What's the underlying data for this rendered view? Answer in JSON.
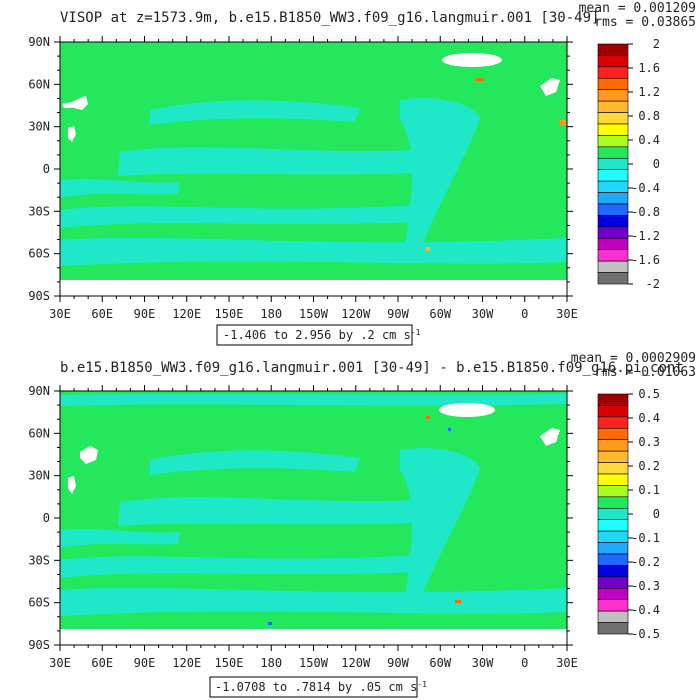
{
  "colors": {
    "ocean_base": "#24e85c",
    "ocean_neg": "#1fe8c8",
    "land": "#ffffff",
    "frame": "#000000"
  },
  "panels": [
    {
      "title": "VISOP at z=1573.9m, b.e15.B1850_WW3.f09_g16.langmuir.001 [30-49]",
      "mean_text": "mean = 0.001209",
      "rms_text": "rms = 0.03865",
      "range_text": "-1.406 to 2.956 by .2 cm s",
      "range_sup": "-1",
      "colorbar": {
        "labels": [
          "2",
          "1.6",
          "1.2",
          "0.8",
          "0.4",
          "0",
          "-0.4",
          "-0.8",
          "-1.2",
          "-1.6",
          "-2"
        ],
        "colors": [
          "#a00000",
          "#d80000",
          "#ff2020",
          "#ff6a00",
          "#ff9a20",
          "#ffb830",
          "#ffd840",
          "#ffff00",
          "#aaff20",
          "#24e85c",
          "#1fe8c8",
          "#20ffff",
          "#20d8ff",
          "#20a8ff",
          "#2068ff",
          "#0000e0",
          "#7000c8",
          "#c000c0",
          "#ff30d0",
          "#c0c0c0",
          "#707070"
        ]
      }
    },
    {
      "title": "b.e15.B1850_WW3.f09_g16.langmuir.001 [30-49] - b.e15.B1850.f09_g16.pi_cont",
      "mean_text": "mean = 0.0002909",
      "rms_text": "rms = 0.01063",
      "range_text": "-1.0708 to .7814 by .05 cm s",
      "range_sup": "-1",
      "colorbar": {
        "labels": [
          "0.5",
          "0.4",
          "0.3",
          "0.2",
          "0.1",
          "0",
          "-0.1",
          "-0.2",
          "-0.3",
          "-0.4",
          "-0.5"
        ],
        "colors": [
          "#a00000",
          "#d80000",
          "#ff2020",
          "#ff6a00",
          "#ff9a20",
          "#ffb830",
          "#ffd840",
          "#ffff00",
          "#aaff20",
          "#24e85c",
          "#1fe8c8",
          "#20ffff",
          "#20d8ff",
          "#20a8ff",
          "#2068ff",
          "#0000e0",
          "#7000c8",
          "#c000c0",
          "#ff30d0",
          "#c0c0c0",
          "#707070"
        ]
      }
    }
  ],
  "lat_labels": [
    "90N",
    "60N",
    "30N",
    "0",
    "30S",
    "60S",
    "90S"
  ],
  "lon_labels": [
    "30E",
    "60E",
    "90E",
    "120E",
    "150E",
    "180",
    "150W",
    "120W",
    "90W",
    "60W",
    "30W",
    "0",
    "30E"
  ]
}
